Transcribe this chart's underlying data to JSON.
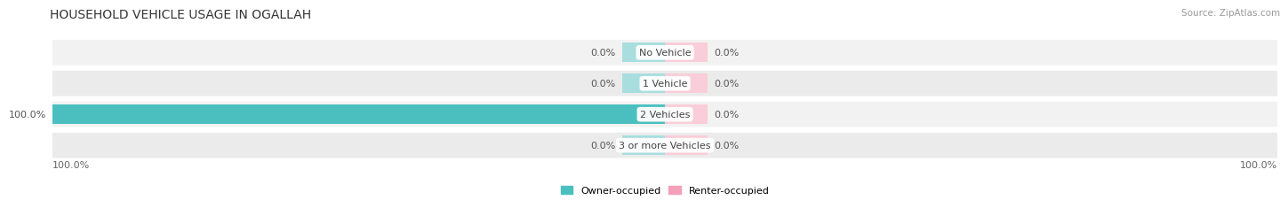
{
  "title": "HOUSEHOLD VEHICLE USAGE IN OGALLAH",
  "source": "Source: ZipAtlas.com",
  "categories": [
    "No Vehicle",
    "1 Vehicle",
    "2 Vehicles",
    "3 or more Vehicles"
  ],
  "owner_values": [
    0.0,
    0.0,
    100.0,
    0.0
  ],
  "renter_values": [
    0.0,
    0.0,
    0.0,
    0.0
  ],
  "owner_color": "#4BBFBF",
  "renter_color": "#F4A0B8",
  "owner_color_light": "#A8DEDE",
  "renter_color_light": "#F9CDD9",
  "row_bg_light": "#F0F0F0",
  "row_bg_dark": "#E8E8E8",
  "background_color": "#FFFFFF",
  "xlim": [
    -100,
    100
  ],
  "bar_height": 0.62,
  "min_bar_width": 7,
  "title_fontsize": 10,
  "label_fontsize": 8,
  "tick_fontsize": 8,
  "legend_fontsize": 8,
  "source_fontsize": 7.5
}
